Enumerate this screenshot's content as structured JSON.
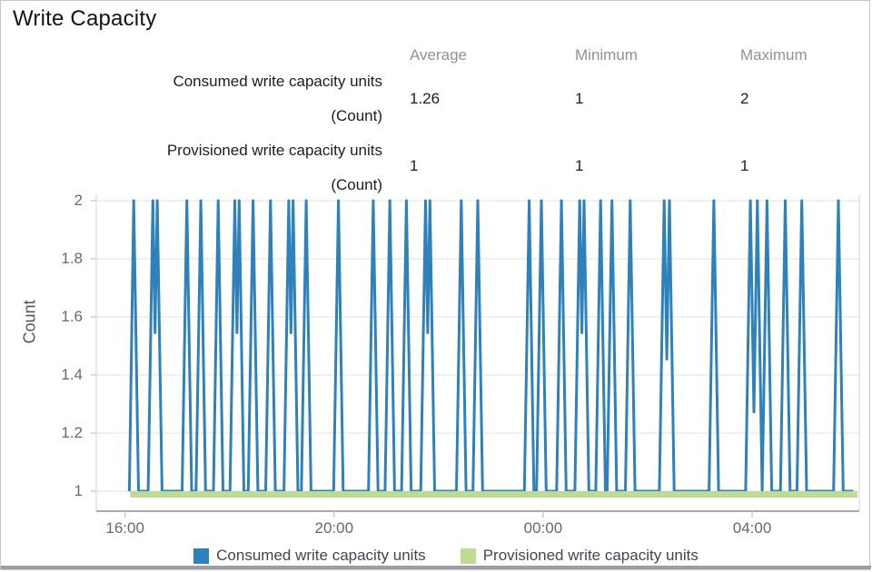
{
  "stats": {
    "columns": [
      "Average",
      "Minimum",
      "Maximum"
    ],
    "rows": [
      {
        "label": "Consumed write capacity units",
        "unit": "(Count)",
        "values": [
          "1.26",
          "1",
          "2"
        ]
      },
      {
        "label": "Provisioned write capacity units",
        "unit": "(Count)",
        "values": [
          "1",
          "1",
          "1"
        ]
      }
    ]
  },
  "chart_data": {
    "type": "line",
    "title": "Write Capacity",
    "xlabel": "",
    "ylabel": "Count",
    "grid": true,
    "legend_position": "bottom",
    "y_domain": [
      0.93,
      2.03
    ],
    "ytick_values": [
      1,
      1.2,
      1.4,
      1.6,
      1.8,
      2
    ],
    "ytick_labels": [
      "1",
      "1.2",
      "1.4",
      "1.6",
      "1.8",
      "2"
    ],
    "x_domain_minutes": [
      -33,
      843
    ],
    "xticks": [
      {
        "minute": 0,
        "label": "16:00"
      },
      {
        "minute": 240,
        "label": "20:00"
      },
      {
        "minute": 480,
        "label": "00:00"
      },
      {
        "minute": 720,
        "label": "04:00"
      }
    ],
    "series": [
      {
        "name": "Consumed write capacity units",
        "color": "#2f81bb",
        "kind": "spikes",
        "baseline_value": 1,
        "spike_value": 2,
        "start_minute": 5,
        "end_minute": 836,
        "spike_half_width_minutes": 5.5,
        "spike_minutes": [
          10,
          32,
          37,
          71,
          87,
          107,
          126,
          131,
          147,
          167,
          188,
          193,
          208,
          245,
          285,
          304,
          323,
          345,
          350,
          386,
          405,
          464,
          478,
          501,
          522,
          527,
          546,
          559,
          580,
          619,
          625,
          676,
          718,
          726,
          737,
          758,
          777,
          819
        ]
      },
      {
        "name": "Provisioned write capacity units",
        "color": "#bedb92",
        "kind": "flat",
        "value": 1,
        "start_minute": 6,
        "end_minute": 841
      }
    ]
  },
  "colors": {
    "gridline": "#ececec",
    "tick_mark": "#cccccc",
    "axis_bottom": "#a9a9a9",
    "axis_side": "#e2e2e2",
    "consumed_blue": "#2f81bb",
    "provisioned_green": "#bedb92"
  }
}
